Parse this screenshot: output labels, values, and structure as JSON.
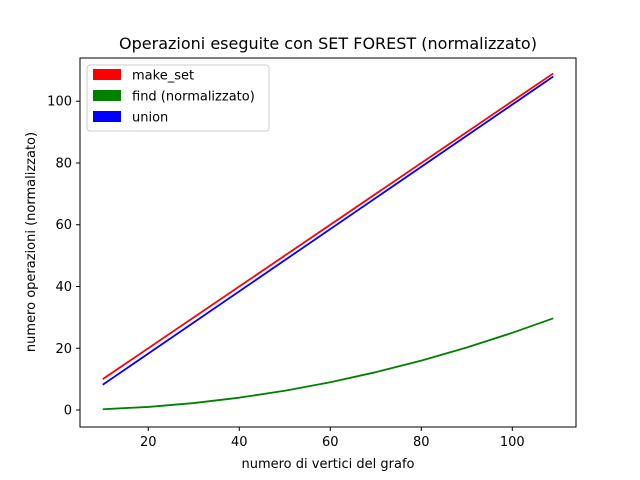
{
  "chart_data": {
    "type": "line",
    "title": "Operazioni eseguite con SET FOREST (normalizzato)",
    "xlabel": "numero di vertici del grafo",
    "ylabel": "numero operazioni (normalizzato)",
    "xlim": [
      5,
      114
    ],
    "ylim": [
      -5.5,
      114
    ],
    "xticks": [
      20,
      40,
      60,
      80,
      100
    ],
    "yticks": [
      0,
      20,
      40,
      60,
      80,
      100
    ],
    "grid": false,
    "legend_position": "top-left",
    "series": [
      {
        "name": "make_set",
        "color": "#ff0000",
        "x": [
          10,
          109
        ],
        "y": [
          10,
          109
        ]
      },
      {
        "name": "find (normalizzato)",
        "color": "#008000",
        "x": [
          10,
          20,
          30,
          40,
          50,
          60,
          70,
          80,
          90,
          100,
          109
        ],
        "y": [
          0.25,
          1.0,
          2.25,
          4.0,
          6.25,
          9.0,
          12.25,
          16.0,
          20.25,
          25.0,
          29.7
        ]
      },
      {
        "name": "union",
        "color": "#0000ff",
        "x": [
          10,
          109
        ],
        "y": [
          8.2,
          108
        ]
      }
    ]
  }
}
